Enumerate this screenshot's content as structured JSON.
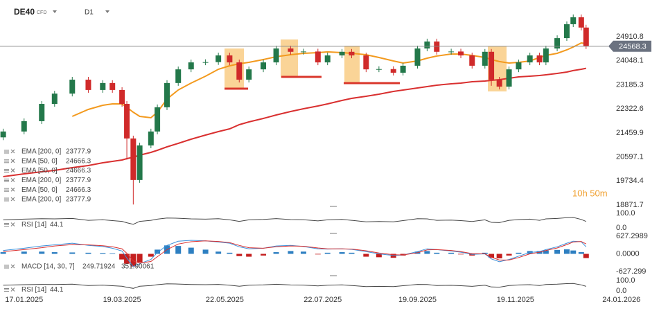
{
  "header": {
    "symbol": "DE40",
    "instrument_type": "CFD",
    "timeframe": "D1"
  },
  "chart_data": [
    {
      "type": "candlestick",
      "x": [
        "2025-01-04",
        "2025-01-17",
        "2025-01-28",
        "2025-02-05",
        "2025-02-16",
        "2025-02-26",
        "2025-03-07",
        "2025-03-13",
        "2025-03-19",
        "2025-03-22",
        "2025-03-26",
        "2025-03-30",
        "2025-04-06",
        "2025-04-10",
        "2025-04-16",
        "2025-04-23",
        "2025-05-01",
        "2025-05-10",
        "2025-05-18",
        "2025-05-25",
        "2025-05-31",
        "2025-06-06",
        "2025-06-15",
        "2025-06-23",
        "2025-07-02",
        "2025-07-10",
        "2025-07-19",
        "2025-07-25",
        "2025-08-03",
        "2025-08-09",
        "2025-08-18",
        "2025-08-26",
        "2025-09-04",
        "2025-09-10",
        "2025-09-19",
        "2025-09-25",
        "2025-10-01",
        "2025-10-10",
        "2025-10-16",
        "2025-10-23",
        "2025-10-31",
        "2025-11-04",
        "2025-11-09",
        "2025-11-15",
        "2025-11-21",
        "2025-11-28",
        "2025-12-04",
        "2025-12-08",
        "2025-12-15",
        "2025-12-21",
        "2025-12-25",
        "2025-12-30",
        "2026-01-02"
      ],
      "open": [
        21300,
        21510,
        21880,
        22500,
        22870,
        23370,
        23000,
        23250,
        23000,
        22500,
        21260,
        19770,
        21010,
        21510,
        22380,
        23250,
        23740,
        23990,
        24000,
        24240,
        23990,
        23370,
        23740,
        23990,
        24490,
        24370,
        24380,
        23990,
        24240,
        24370,
        24240,
        23740,
        23750,
        23620,
        23870,
        24490,
        24740,
        24370,
        24380,
        24240,
        23870,
        24370,
        23370,
        23120,
        23740,
        23990,
        24240,
        23990,
        24490,
        24860,
        25360,
        25610,
        25240
      ],
      "high": [
        21610,
        21980,
        22600,
        22970,
        23470,
        23470,
        23350,
        23350,
        23100,
        22600,
        21360,
        21110,
        21610,
        22480,
        23350,
        23840,
        24090,
        24100,
        24340,
        24340,
        24090,
        23840,
        24090,
        24590,
        24590,
        24480,
        24480,
        24340,
        24470,
        24470,
        24340,
        23850,
        23850,
        23970,
        24590,
        24840,
        24840,
        24480,
        24480,
        24340,
        24470,
        24470,
        23470,
        23840,
        24090,
        24340,
        24340,
        24590,
        24960,
        25460,
        25710,
        25710,
        25340
      ],
      "low": [
        21200,
        21410,
        21780,
        22400,
        22770,
        22900,
        22900,
        22900,
        22400,
        20500,
        18890,
        19670,
        20910,
        21410,
        22280,
        23150,
        23640,
        23890,
        23900,
        23890,
        23270,
        23270,
        23640,
        23890,
        24270,
        24270,
        23890,
        23890,
        24140,
        24140,
        23640,
        23640,
        23520,
        23520,
        23770,
        24390,
        24270,
        24270,
        24140,
        23770,
        23770,
        23150,
        23020,
        23020,
        23640,
        23890,
        23890,
        23890,
        24390,
        24760,
        25260,
        25140,
        24468.3
      ],
      "close": [
        21510,
        21880,
        22500,
        22870,
        23370,
        23000,
        23250,
        23000,
        22500,
        21260,
        19770,
        21010,
        21510,
        22380,
        23250,
        23740,
        23990,
        24000,
        24240,
        23990,
        23370,
        23740,
        23990,
        24490,
        24370,
        24380,
        23990,
        24240,
        24370,
        24240,
        23740,
        23750,
        23620,
        23870,
        24490,
        24740,
        24370,
        24380,
        24240,
        23870,
        24370,
        23370,
        23120,
        23740,
        23990,
        24240,
        23990,
        24490,
        24860,
        25360,
        25610,
        25240,
        24568.3
      ],
      "up_color": "#23784a",
      "down_color": "#d02a2a",
      "series": [
        {
          "name": "EMA [200, 0]",
          "color": "#d93030",
          "values": [
            19891,
            19990,
            20065,
            20115,
            20214,
            20289,
            20388,
            20438,
            20488,
            20537,
            20587,
            20662,
            20761,
            20836,
            20960,
            21084,
            21233,
            21382,
            21507,
            21606,
            21755,
            21855,
            21979,
            22103,
            22228,
            22327,
            22427,
            22501,
            22625,
            22700,
            22775,
            22849,
            22949,
            22998,
            23073,
            23123,
            23172,
            23222,
            23247,
            23297,
            23321,
            23346,
            23371,
            23421,
            23471,
            23496,
            23520,
            23545,
            23595,
            23645,
            23695,
            23744,
            23777.9
          ]
        },
        {
          "name": "EMA [50, 0]",
          "color": "#f39a1e",
          "values": [
            null,
            null,
            null,
            null,
            22054,
            22302,
            22451,
            22501,
            22501,
            22377,
            22203,
            22054,
            22004,
            22203,
            22675,
            22999,
            23247,
            23496,
            23744,
            23868,
            23943,
            23993,
            24092,
            24192,
            24266,
            24316,
            24341,
            24366,
            24341,
            24316,
            24266,
            24167,
            24042,
            23968,
            24042,
            24142,
            24217,
            24291,
            24291,
            24241,
            24167,
            24092,
            24018,
            23968,
            23993,
            24042,
            24167,
            24241,
            24316,
            24440,
            24540,
            24689,
            24666.3
          ]
        }
      ],
      "legend": [
        {
          "name": "EMA [200, 0]",
          "value": 23777.9
        },
        {
          "name": "EMA [50, 0]",
          "value": 24666.3
        },
        {
          "name": "EMA [50, 0]",
          "value": 24666.3
        },
        {
          "name": "EMA [200, 0]",
          "value": 23777.9
        },
        {
          "name": "EMA [50, 0]",
          "value": 24666.3
        },
        {
          "name": "EMA [200, 0]",
          "value": 23777.9
        }
      ],
      "xlim": [
        "2025-01-02",
        "2026-01-09"
      ],
      "xticks": [
        {
          "value": "2025-01-17",
          "label": "17.01.2025"
        },
        {
          "value": "2025-03-19",
          "label": "19.03.2025"
        },
        {
          "value": "2025-05-22",
          "label": "22.05.2025"
        },
        {
          "value": "2025-07-22",
          "label": "22.07.2025"
        },
        {
          "value": "2025-09-19",
          "label": "19.09.2025"
        },
        {
          "value": "2025-11-19",
          "label": "19.11.2025"
        },
        {
          "value": "2026-01-24",
          "label": "24.01.2026"
        }
      ],
      "ylim": [
        18871.7,
        26030
      ],
      "yticks": [
        18871.7,
        19734.4,
        20597.1,
        21459.9,
        22322.6,
        23185.3,
        24048.1,
        24910.8
      ],
      "countdown": "10h 50m"
    },
    {
      "type": "line",
      "series": [
        {
          "name": "RSI [14]",
          "color": "#444444",
          "values": [
            55,
            60,
            63,
            62,
            65,
            52,
            56,
            50,
            45,
            35,
            25,
            45,
            52,
            60,
            68,
            66,
            62,
            60,
            63,
            55,
            45,
            55,
            58,
            64,
            57,
            56,
            48,
            55,
            58,
            52,
            42,
            44,
            42,
            50,
            63,
            62,
            52,
            54,
            50,
            44,
            55,
            38,
            36,
            52,
            57,
            60,
            52,
            62,
            65,
            70,
            72,
            58,
            44.1
          ]
        }
      ],
      "ylim": [
        0,
        100
      ],
      "yticks": [
        {
          "value": 0,
          "label": "0.0"
        },
        {
          "value": 100,
          "label": "100.0"
        }
      ]
    },
    {
      "type": "macd",
      "name": "MACD [14, 30, 7]",
      "histogram": [
        60,
        80,
        80,
        60,
        50,
        40,
        30,
        20,
        -200,
        -350,
        -450,
        -300,
        -100,
        150,
        300,
        280,
        220,
        150,
        80,
        40,
        -80,
        -100,
        -60,
        60,
        100,
        80,
        -20,
        40,
        60,
        40,
        -100,
        -120,
        -140,
        -60,
        80,
        100,
        40,
        40,
        -20,
        -60,
        40,
        -140,
        -160,
        -60,
        40,
        100,
        100,
        120,
        140,
        160,
        120,
        60,
        -150
      ],
      "positive_color": "#2d7fc1",
      "negative_color": "#c41f1f",
      "macd": {
        "color": "#3b8fd9",
        "values": [
          120,
          200,
          280,
          320,
          380,
          300,
          260,
          200,
          100,
          -150,
          -450,
          -350,
          -200,
          50,
          300,
          450,
          480,
          460,
          420,
          380,
          250,
          180,
          200,
          280,
          300,
          260,
          180,
          170,
          180,
          160,
          80,
          0,
          -60,
          -40,
          80,
          180,
          150,
          100,
          60,
          -20,
          0,
          -180,
          -280,
          -200,
          -80,
          50,
          80,
          150,
          250,
          380,
          450,
          430,
          249.71924
        ]
      },
      "signal": {
        "color": "#d93030",
        "values": [
          80,
          150,
          220,
          280,
          330,
          320,
          290,
          250,
          180,
          20,
          -250,
          -330,
          -270,
          -100,
          150,
          350,
          430,
          460,
          440,
          400,
          300,
          220,
          200,
          250,
          280,
          270,
          210,
          180,
          180,
          170,
          110,
          30,
          -30,
          -40,
          40,
          140,
          150,
          120,
          80,
          10,
          0,
          -120,
          -220,
          -220,
          -130,
          0,
          60,
          120,
          210,
          330,
          420,
          440,
          351.90061
        ]
      },
      "ylim": [
        -627.299,
        627.2989
      ],
      "yticks": [
        -627.299,
        {
          "value": 0,
          "label": "0.0000"
        },
        627.2989
      ]
    },
    {
      "type": "line",
      "series": [
        {
          "name": "RSI [14]",
          "color": "#444444",
          "values": [
            55,
            60,
            63,
            62,
            65,
            52,
            56,
            50,
            45,
            35,
            25,
            45,
            52,
            60,
            68,
            66,
            62,
            60,
            63,
            55,
            45,
            55,
            58,
            64,
            57,
            56,
            48,
            55,
            58,
            52,
            42,
            44,
            42,
            50,
            63,
            62,
            52,
            54,
            50,
            44,
            55,
            38,
            36,
            52,
            57,
            60,
            52,
            62,
            65,
            70,
            72,
            58,
            44.1
          ]
        }
      ],
      "ylim": [
        0,
        100
      ],
      "yticks": [
        {
          "value": 0,
          "label": "0.0"
        },
        {
          "value": 100,
          "label": "100.0"
        }
      ]
    }
  ]
}
